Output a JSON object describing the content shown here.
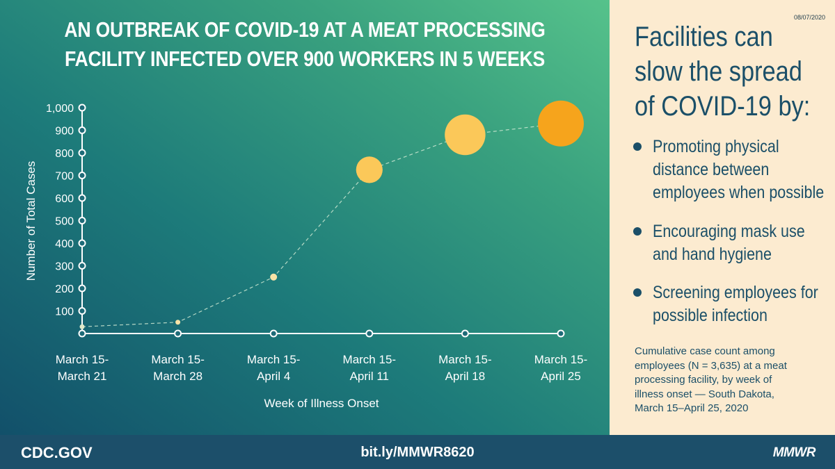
{
  "title_lines": [
    "AN OUTBREAK OF COVID-19 AT A MEAT PROCESSING",
    "FACILITY INFECTED OVER 900 WORKERS IN 5 WEEKS"
  ],
  "date": "08/07/2020",
  "headline_lines": [
    "Facilities can",
    "slow the spread",
    "of COVID-19 by:"
  ],
  "bullets": [
    {
      "lines": [
        "Promoting physical",
        "distance between",
        "employees when possible"
      ]
    },
    {
      "lines": [
        "Encouraging mask use",
        "and hand hygiene"
      ]
    },
    {
      "lines": [
        "Screening employees for",
        "possible infection"
      ]
    }
  ],
  "caption_lines": [
    "Cumulative case count among",
    "employees (N = 3,635) at a meat",
    "processing facility, by week of",
    "illness onset — South Dakota,",
    "March 15–April 25, 2020"
  ],
  "footer": {
    "left": "CDC.GOV",
    "center": "bit.ly/MMWR8620",
    "right": "MMWR"
  },
  "colors": {
    "dark_teal": "#1b4f68",
    "point_pale": "#f8e3a6",
    "point_light": "#fbc859",
    "point_orange": "#f6a41c"
  },
  "chart_data": {
    "type": "scatter",
    "xlabel": "Week of Illness Onset",
    "ylabel": "Number of Total Cases",
    "ylim": [
      0,
      1000
    ],
    "y_ticks": [
      100,
      200,
      300,
      400,
      500,
      600,
      700,
      800,
      900,
      1000
    ],
    "y_tick_labels": [
      "100",
      "200",
      "300",
      "400",
      "500",
      "600",
      "700",
      "800",
      "900",
      "1,000"
    ],
    "categories": [
      [
        "March 15-",
        "March 21"
      ],
      [
        "March 15-",
        "March 28"
      ],
      [
        "March 15-",
        "April 4"
      ],
      [
        "March 15-",
        "April 11"
      ],
      [
        "March 15-",
        "April 18"
      ],
      [
        "March 15-",
        "April 25"
      ]
    ],
    "values": [
      30,
      50,
      250,
      725,
      880,
      930
    ],
    "connector": "dashed line",
    "grid": false,
    "legend": "none"
  }
}
